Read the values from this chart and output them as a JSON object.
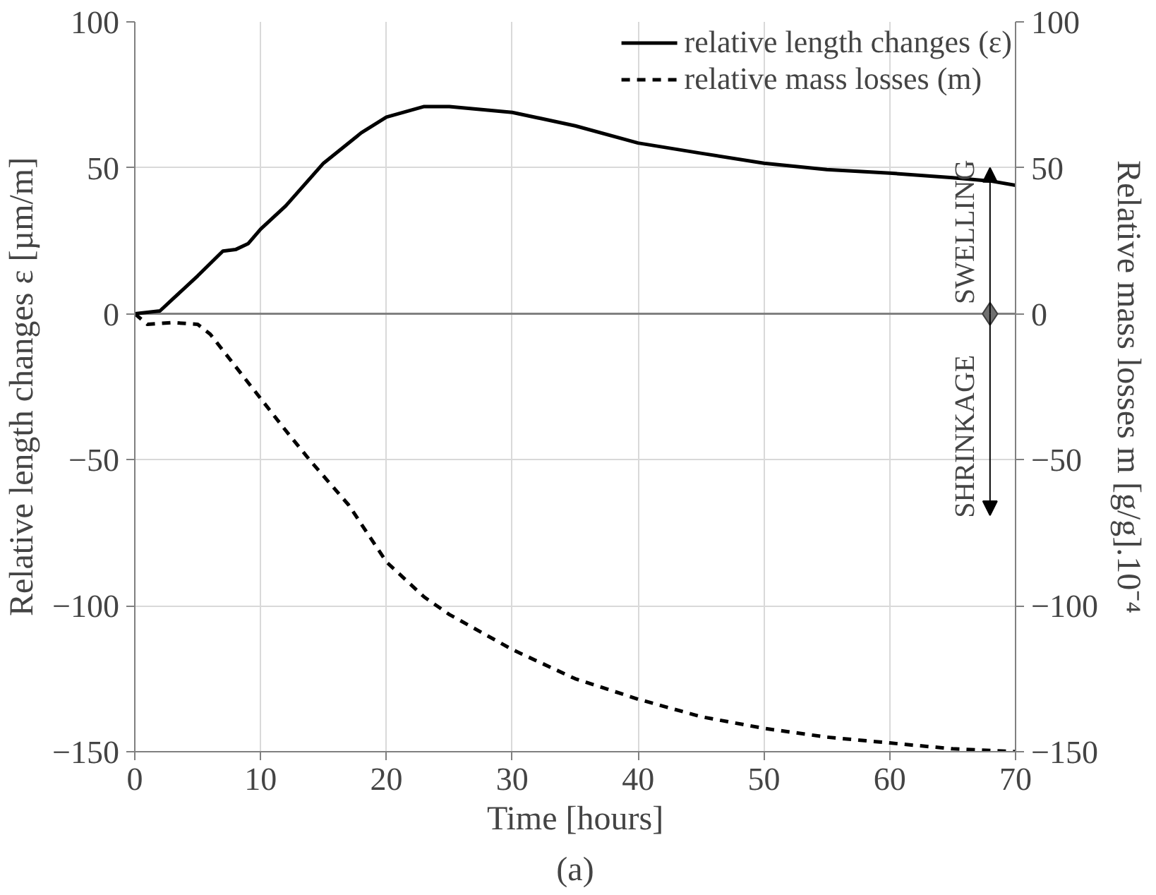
{
  "chart_data": {
    "type": "line",
    "xlabel": "Time [hours]",
    "ylabel": "Relative length changes ε [µm/m]",
    "y2label": "Relative mass losses m [g/g].10⁻⁴",
    "xlim": [
      0,
      70
    ],
    "xticks": [
      0,
      10,
      20,
      30,
      40,
      50,
      60,
      70
    ],
    "ylim": [
      -150,
      100
    ],
    "yticks": [
      -150,
      -100,
      -50,
      0,
      50,
      100
    ],
    "y2lim": [
      -150,
      100
    ],
    "y2ticks": [
      -150,
      -100,
      -50,
      0,
      50,
      100
    ],
    "grid": true,
    "legend": "top right",
    "series": [
      {
        "name": "relative length changes (ε)",
        "color": "#000000",
        "line_style": "solid",
        "x": [
          0,
          2,
          3,
          5,
          7,
          8,
          9,
          10,
          12,
          15,
          18,
          20,
          23,
          25,
          30,
          35,
          40,
          45,
          50,
          55,
          60,
          65,
          68,
          70
        ],
        "values": [
          0,
          1,
          5,
          13,
          21.5,
          22,
          24,
          29,
          37,
          51.6,
          62,
          67.4,
          71,
          71,
          69,
          64.4,
          58.5,
          55,
          51.6,
          49.4,
          48.2,
          46.6,
          45.5,
          44
        ]
      },
      {
        "name": "relative mass losses (m)",
        "color": "#000000",
        "line_style": "dashed",
        "x": [
          0,
          1,
          3,
          5,
          6,
          8,
          10,
          12,
          14,
          17,
          20,
          23,
          25,
          30,
          35,
          40,
          45,
          50,
          55,
          60,
          65,
          70
        ],
        "values": [
          0,
          -3.6,
          -3,
          -3.6,
          -7,
          -18,
          -29,
          -40,
          -50.6,
          -65.5,
          -85,
          -97,
          -103,
          -115,
          -125,
          -132,
          -138,
          -142,
          -145,
          -147,
          -149,
          -150
        ]
      }
    ],
    "annotations": [
      "SWELLING",
      "SHRINKAGE",
      "(a)"
    ]
  }
}
